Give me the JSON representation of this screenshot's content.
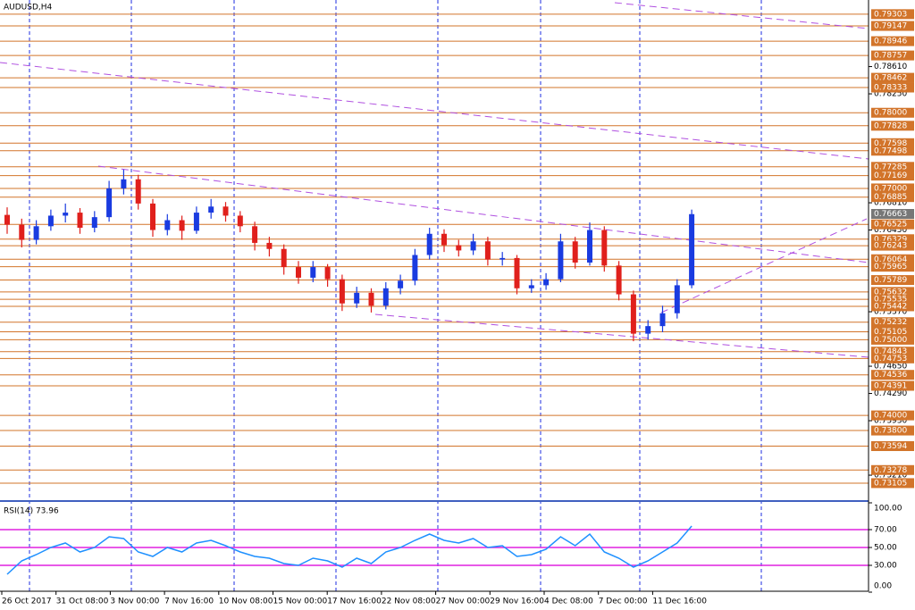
{
  "chart_data": [
    {
      "type": "candlestick",
      "title": "AUDUSD,H4",
      "open": [
        0.7665,
        0.7652,
        0.7632,
        0.765,
        0.7664,
        0.7668,
        0.7648,
        0.7662,
        0.77,
        0.7712,
        0.768,
        0.7645,
        0.7658,
        0.7644,
        0.7668,
        0.7676,
        0.7664,
        0.765,
        0.7628,
        0.762,
        0.7596,
        0.7582,
        0.7596,
        0.758,
        0.7548,
        0.7562,
        0.7545,
        0.7568,
        0.7578,
        0.7612,
        0.764,
        0.7625,
        0.7618,
        0.763,
        0.7606,
        0.7608,
        0.7568,
        0.7572,
        0.758,
        0.763,
        0.7602,
        0.7645,
        0.7598,
        0.756,
        0.7508,
        0.7518,
        0.7535,
        0.7572
      ],
      "high": [
        0.7675,
        0.766,
        0.7658,
        0.7672,
        0.768,
        0.7674,
        0.767,
        0.771,
        0.7725,
        0.7718,
        0.7686,
        0.7666,
        0.7664,
        0.7676,
        0.7686,
        0.7682,
        0.767,
        0.7656,
        0.7636,
        0.7626,
        0.7604,
        0.7604,
        0.76,
        0.7586,
        0.757,
        0.7568,
        0.7576,
        0.7586,
        0.762,
        0.7648,
        0.7646,
        0.7632,
        0.764,
        0.7636,
        0.7616,
        0.7612,
        0.758,
        0.7588,
        0.764,
        0.7636,
        0.7655,
        0.765,
        0.7604,
        0.7565,
        0.7526,
        0.7545,
        0.758,
        0.7672
      ],
      "low": [
        0.764,
        0.7622,
        0.7626,
        0.7644,
        0.7655,
        0.764,
        0.7642,
        0.7656,
        0.7692,
        0.7672,
        0.7636,
        0.7638,
        0.7632,
        0.764,
        0.766,
        0.7656,
        0.7642,
        0.7618,
        0.761,
        0.7586,
        0.7574,
        0.7576,
        0.757,
        0.7538,
        0.7542,
        0.7536,
        0.754,
        0.756,
        0.7572,
        0.7606,
        0.7616,
        0.761,
        0.7612,
        0.7598,
        0.7598,
        0.756,
        0.7562,
        0.7566,
        0.7576,
        0.7594,
        0.7598,
        0.759,
        0.7552,
        0.7498,
        0.75,
        0.751,
        0.7528,
        0.7568
      ],
      "close": [
        0.7652,
        0.7632,
        0.765,
        0.7664,
        0.7668,
        0.7648,
        0.7662,
        0.77,
        0.7712,
        0.768,
        0.7645,
        0.7658,
        0.7644,
        0.7668,
        0.7676,
        0.7664,
        0.765,
        0.7628,
        0.762,
        0.7596,
        0.7582,
        0.7596,
        0.758,
        0.7548,
        0.7562,
        0.7545,
        0.7568,
        0.7578,
        0.7612,
        0.764,
        0.7625,
        0.7618,
        0.763,
        0.7606,
        0.7608,
        0.7568,
        0.7572,
        0.758,
        0.763,
        0.7602,
        0.7645,
        0.7598,
        0.756,
        0.7508,
        0.7518,
        0.7535,
        0.7572,
        0.7666
      ],
      "ylim": [
        0.7949,
        0.7288
      ],
      "yticks": [
        {
          "value": 0.7861,
          "label": "0.78610"
        },
        {
          "value": 0.7825,
          "label": "0.78250"
        },
        {
          "value": 0.7681,
          "label": "0.76810"
        },
        {
          "value": 0.7645,
          "label": "0.76450"
        },
        {
          "value": 0.7537,
          "label": "0.75370"
        },
        {
          "value": 0.7465,
          "label": "0.74650"
        },
        {
          "value": 0.7429,
          "label": "0.74290"
        },
        {
          "value": 0.7393,
          "label": "0.73930"
        },
        {
          "value": 0.7321,
          "label": "0.73210"
        }
      ],
      "levels": [
        0.79303,
        0.79147,
        0.78946,
        0.78757,
        0.78462,
        0.78333,
        {
          "value": 0.78,
          "label": "0.78000"
        },
        0.77828,
        0.77598,
        0.77498,
        0.77285,
        0.77169,
        {
          "value": 0.77,
          "label": "0.77000"
        },
        0.76885,
        0.76525,
        0.76329,
        0.76243,
        0.76064,
        0.75965,
        0.75789,
        0.75632,
        0.75535,
        0.75442,
        0.75232,
        0.75105,
        {
          "value": 0.75,
          "label": "0.75000"
        },
        0.74843,
        0.74753,
        0.74536,
        0.74391,
        {
          "value": 0.74,
          "label": "0.74000"
        },
        {
          "value": 0.738,
          "label": "0.73800"
        },
        0.73594,
        0.73278,
        0.73105
      ],
      "current_price": 0.76663,
      "x_labels": [
        "26 Oct 2017",
        "31 Oct 08:00",
        "3 Nov 00:00",
        "7 Nov 16:00",
        "10 Nov 08:00",
        "15 Nov 00:00",
        "17 Nov 16:00",
        "22 Nov 08:00",
        "27 Nov 00:00",
        "29 Nov 16:00",
        "4 Dec 08:00",
        "7 Dec 00:00",
        "11 Dec 16:00"
      ],
      "bull_color": "#1a3be0",
      "bear_color": "#e0201c",
      "level_color": "#d2742a"
    },
    {
      "type": "line",
      "title": "RSI(14) 73.96",
      "values": [
        20,
        35,
        42,
        50,
        55,
        45,
        50,
        62,
        60,
        45,
        40,
        50,
        45,
        55,
        58,
        52,
        45,
        40,
        38,
        32,
        30,
        38,
        35,
        28,
        38,
        32,
        45,
        50,
        58,
        65,
        58,
        55,
        60,
        50,
        52,
        40,
        42,
        48,
        62,
        52,
        65,
        45,
        38,
        28,
        35,
        45,
        55,
        74
      ],
      "ylim": [
        0,
        100
      ],
      "yticks": [
        {
          "value": 100,
          "label": "100.00"
        },
        {
          "value": 70,
          "label": "70.00"
        },
        {
          "value": 50,
          "label": "50.00"
        },
        {
          "value": 30,
          "label": "30.00"
        },
        {
          "value": 0,
          "label": "0.00"
        }
      ],
      "levels": [
        70,
        50,
        30
      ],
      "color": "#1e90ff",
      "level_color": "#e020e0"
    }
  ]
}
